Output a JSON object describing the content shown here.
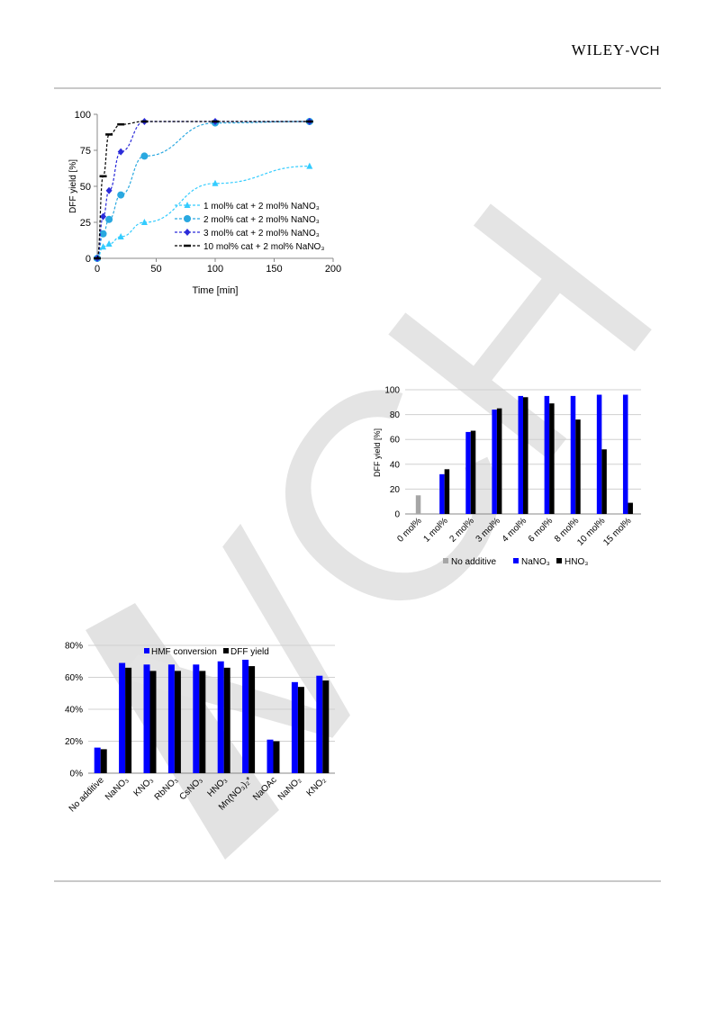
{
  "header": {
    "publisher_main": "WILEY",
    "publisher_suffix": "-VCH"
  },
  "watermark": {
    "text": "VCH"
  },
  "chart_data": [
    {
      "type": "line",
      "xlabel": "Time [min]",
      "ylabel": "DFF yield [%]",
      "xlim": [
        0,
        200
      ],
      "ylim": [
        0,
        100
      ],
      "xticks": [
        0,
        50,
        100,
        150,
        200
      ],
      "yticks": [
        0,
        25,
        50,
        75,
        100
      ],
      "legend_position": "center-right",
      "series": [
        {
          "name": "1 mol% cat  + 2 mol% NaNO₃",
          "color": "#33ccff",
          "marker": "triangle",
          "x": [
            0,
            5,
            10,
            20,
            40,
            100,
            180
          ],
          "y": [
            0,
            8,
            10,
            15,
            25,
            52,
            64
          ]
        },
        {
          "name": "2 mol% cat  + 2 mol% NaNO₃",
          "color": "#29a8e0",
          "marker": "circle",
          "x": [
            0,
            5,
            10,
            20,
            40,
            100,
            180
          ],
          "y": [
            0,
            17,
            27,
            44,
            71,
            94,
            95
          ]
        },
        {
          "name": "3 mol% cat  + 2 mol% NaNO₃",
          "color": "#2b2bd9",
          "marker": "diamond",
          "x": [
            0,
            5,
            10,
            20,
            40,
            100,
            180
          ],
          "y": [
            0,
            29,
            47,
            74,
            95,
            95,
            95
          ]
        },
        {
          "name": "10 mol% cat  + 2 mol% NaNO₃",
          "color": "#000000",
          "marker": "dash",
          "x": [
            0,
            5,
            10,
            20,
            40,
            100,
            180
          ],
          "y": [
            0,
            57,
            86,
            93,
            95,
            95,
            95
          ]
        }
      ]
    },
    {
      "type": "bar",
      "ylabel": "DFF yield [%]",
      "ylim": [
        0,
        100
      ],
      "yticks": [
        0,
        20,
        40,
        60,
        80,
        100
      ],
      "grid": true,
      "legend_position": "bottom",
      "categories": [
        "0 mol%",
        "1 mol%",
        "2 mol%",
        "3 mol%",
        "4 mol%",
        "6 mol%",
        "8 mol%",
        "10 mol%",
        "15 mol%"
      ],
      "series": [
        {
          "name": "No additive",
          "color": "#a6a6a6",
          "values": [
            15,
            null,
            null,
            null,
            null,
            null,
            null,
            null,
            null
          ]
        },
        {
          "name": "NaNO₃",
          "color": "#0000ff",
          "values": [
            null,
            32,
            66,
            84,
            95,
            95,
            95,
            96,
            96
          ]
        },
        {
          "name": "HNO₃",
          "color": "#000000",
          "values": [
            null,
            36,
            67,
            85,
            94,
            89,
            76,
            52,
            9
          ]
        }
      ]
    },
    {
      "type": "bar",
      "ylim": [
        0,
        80
      ],
      "yticks": [
        "0%",
        "20%",
        "40%",
        "60%",
        "80%"
      ],
      "grid": true,
      "legend_position": "top",
      "categories": [
        "No additive",
        "NaNO₃",
        "KNO₃",
        "RbNO₃",
        "CsNO₃",
        "HNO₃",
        "Mn(NO₃)₂*",
        "NaOAc",
        "NaNO₂",
        "KNO₂"
      ],
      "series": [
        {
          "name": "HMF conversion",
          "color": "#0000ff",
          "values": [
            16,
            69,
            68,
            68,
            68,
            70,
            71,
            21,
            57,
            61
          ]
        },
        {
          "name": "DFF yield",
          "color": "#000000",
          "values": [
            15,
            66,
            64,
            64,
            64,
            66,
            67,
            20,
            54,
            58
          ]
        }
      ]
    }
  ]
}
